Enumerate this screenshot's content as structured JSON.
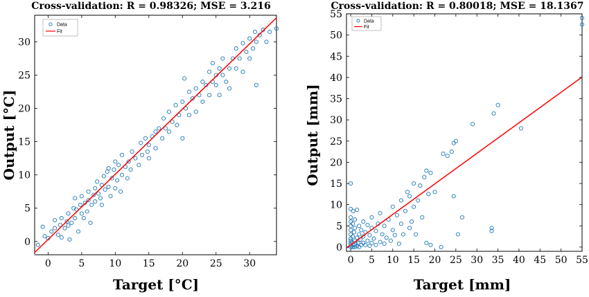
{
  "chart_data": [
    {
      "type": "scatter",
      "title": "Cross-validation: R = 0.98326; MSE = 3.216",
      "xlabel": "Target [°C]",
      "ylabel": "Output [°C]",
      "xlim": [
        -2,
        34
      ],
      "ylim": [
        -2,
        34
      ],
      "xticks": [
        "0",
        "5",
        "10",
        "15",
        "20",
        "25",
        "30"
      ],
      "yticks": [
        "0",
        "5",
        "10",
        "15",
        "20",
        "25",
        "30"
      ],
      "legend": {
        "position": "top-left",
        "entries": [
          "Data",
          "Fit"
        ]
      },
      "colors": {
        "data": "#1f77b4",
        "fit": "#ff0000",
        "diag": "#d9d9d9"
      },
      "fit": {
        "slope": 0.98,
        "intercept": 0.3
      },
      "series": [
        {
          "name": "Data",
          "points": [
            [
              -1.5,
              -0.5
            ],
            [
              -0.8,
              2.2
            ],
            [
              -0.5,
              0.8
            ],
            [
              0,
              0.5
            ],
            [
              0.5,
              1.5
            ],
            [
              1,
              2
            ],
            [
              1,
              3.2
            ],
            [
              1.5,
              1
            ],
            [
              1.8,
              2.5
            ],
            [
              2,
              3.5
            ],
            [
              2,
              0.6
            ],
            [
              2.5,
              2
            ],
            [
              2.8,
              3
            ],
            [
              3,
              2.4
            ],
            [
              3,
              4.2
            ],
            [
              3.2,
              0.3
            ],
            [
              3.5,
              2.8
            ],
            [
              3.8,
              5
            ],
            [
              4,
              3.5
            ],
            [
              4,
              6.5
            ],
            [
              4.2,
              4.8
            ],
            [
              4.5,
              1.5
            ],
            [
              4.8,
              5.5
            ],
            [
              5,
              4.2
            ],
            [
              5,
              6.8
            ],
            [
              5.3,
              3.5
            ],
            [
              5.5,
              5.8
            ],
            [
              5.8,
              4.5
            ],
            [
              6,
              6.2
            ],
            [
              6,
              7.5
            ],
            [
              6.3,
              2.8
            ],
            [
              6.5,
              5.5
            ],
            [
              6.8,
              7
            ],
            [
              7,
              8
            ],
            [
              7,
              6
            ],
            [
              7.3,
              9
            ],
            [
              7.5,
              7.2
            ],
            [
              7.8,
              6.5
            ],
            [
              8,
              8.5
            ],
            [
              8,
              5.5
            ],
            [
              8.3,
              9.8
            ],
            [
              8.5,
              7.8
            ],
            [
              8.8,
              10.5
            ],
            [
              9,
              8.2
            ],
            [
              9,
              11
            ],
            [
              9.3,
              6.8
            ],
            [
              9.5,
              9.5
            ],
            [
              9.8,
              10.8
            ],
            [
              10,
              8
            ],
            [
              10,
              12
            ],
            [
              10.3,
              9.2
            ],
            [
              10.5,
              11.5
            ],
            [
              10.8,
              7.5
            ],
            [
              11,
              10
            ],
            [
              11,
              13
            ],
            [
              11.5,
              11.2
            ],
            [
              11.8,
              9.5
            ],
            [
              12,
              12
            ],
            [
              12.3,
              10.8
            ],
            [
              12.5,
              13.5
            ],
            [
              13,
              12.5
            ],
            [
              13.5,
              11.5
            ],
            [
              13.8,
              14.8
            ],
            [
              14,
              13
            ],
            [
              14.5,
              15.5
            ],
            [
              14.8,
              13.5
            ],
            [
              15,
              14.5
            ],
            [
              15,
              12.5
            ],
            [
              15.5,
              15.8
            ],
            [
              16,
              16.5
            ],
            [
              16,
              14
            ],
            [
              16.5,
              17
            ],
            [
              17,
              15.5
            ],
            [
              17.2,
              18.5
            ],
            [
              17.5,
              17
            ],
            [
              18,
              16.5
            ],
            [
              18,
              19.5
            ],
            [
              18.5,
              18
            ],
            [
              19,
              20.5
            ],
            [
              19.2,
              17.5
            ],
            [
              19.5,
              19
            ],
            [
              20,
              21
            ],
            [
              20,
              15.5
            ],
            [
              20.3,
              24.5
            ],
            [
              20.5,
              20
            ],
            [
              21,
              22.5
            ],
            [
              21,
              19
            ],
            [
              21.5,
              21.5
            ],
            [
              22,
              23
            ],
            [
              22,
              19.5
            ],
            [
              22.5,
              22
            ],
            [
              23,
              24
            ],
            [
              23,
              21
            ],
            [
              23.5,
              23.5
            ],
            [
              24,
              25.5
            ],
            [
              24,
              22
            ],
            [
              24.5,
              24
            ],
            [
              24.5,
              26.8
            ],
            [
              25,
              23.5
            ],
            [
              25,
              25
            ],
            [
              25.5,
              26
            ],
            [
              25.5,
              22
            ],
            [
              26,
              25
            ],
            [
              26,
              27.5
            ],
            [
              26.5,
              24
            ],
            [
              27,
              26
            ],
            [
              27,
              23
            ],
            [
              27.5,
              27.5
            ],
            [
              28,
              26
            ],
            [
              28,
              29
            ],
            [
              28.5,
              27.5
            ],
            [
              29,
              29.8
            ],
            [
              29,
              25.5
            ],
            [
              29.5,
              28.5
            ],
            [
              30,
              30.5
            ],
            [
              30,
              27.5
            ],
            [
              30.5,
              29
            ],
            [
              30.8,
              31.5
            ],
            [
              31,
              30
            ],
            [
              31,
              23.5
            ],
            [
              31.5,
              31
            ],
            [
              32,
              31.8
            ],
            [
              32.5,
              30
            ],
            [
              33,
              31.5
            ],
            [
              34,
              32
            ]
          ]
        }
      ]
    },
    {
      "type": "scatter",
      "title": "Cross-validation: R = 0.80018; MSE = 18.1367",
      "xlabel": "Target [mm]",
      "ylabel": "Output [mm]",
      "xlim": [
        -1,
        55
      ],
      "ylim": [
        -1,
        55
      ],
      "xticks": [
        "0",
        "5",
        "10",
        "15",
        "20",
        "25",
        "30",
        "35",
        "40",
        "45",
        "50",
        "55"
      ],
      "yticks": [
        "0",
        "5",
        "10",
        "15",
        "20",
        "25",
        "30",
        "35",
        "40",
        "45",
        "50",
        "55"
      ],
      "legend": {
        "position": "top-left",
        "entries": [
          "Data",
          "Fit"
        ]
      },
      "colors": {
        "data": "#1f77b4",
        "fit": "#ff0000"
      },
      "fit": {
        "slope": 0.72,
        "intercept": 0.5
      },
      "series": [
        {
          "name": "Data",
          "points": [
            [
              0,
              0
            ],
            [
              0,
              0.5
            ],
            [
              0,
              1
            ],
            [
              0,
              1.5
            ],
            [
              0,
              2
            ],
            [
              0,
              3
            ],
            [
              0,
              4
            ],
            [
              0,
              5
            ],
            [
              0,
              6
            ],
            [
              0,
              7
            ],
            [
              0,
              9
            ],
            [
              0,
              15
            ],
            [
              0.2,
              0.2
            ],
            [
              0.3,
              1.2
            ],
            [
              0.5,
              0
            ],
            [
              0.5,
              2.5
            ],
            [
              0.5,
              5.5
            ],
            [
              0.6,
              8.5
            ],
            [
              0.8,
              0.5
            ],
            [
              0.8,
              3.5
            ],
            [
              1,
              0
            ],
            [
              1,
              1.5
            ],
            [
              1,
              4.5
            ],
            [
              1,
              6.5
            ],
            [
              1.2,
              0.8
            ],
            [
              1.5,
              0.2
            ],
            [
              1.5,
              2.2
            ],
            [
              1.5,
              8.8
            ],
            [
              1.8,
              1
            ],
            [
              2,
              0
            ],
            [
              2,
              3
            ],
            [
              2,
              5
            ],
            [
              2.3,
              1.8
            ],
            [
              2.5,
              0.5
            ],
            [
              2.5,
              4
            ],
            [
              3,
              1
            ],
            [
              3,
              2.5
            ],
            [
              3,
              6
            ],
            [
              3.5,
              0.5
            ],
            [
              3.5,
              3.5
            ],
            [
              4,
              1.5
            ],
            [
              4,
              5.2
            ],
            [
              4.5,
              0.3
            ],
            [
              4.5,
              2.8
            ],
            [
              5,
              1
            ],
            [
              5,
              4.5
            ],
            [
              5,
              7
            ],
            [
              5.5,
              2
            ],
            [
              6,
              0.5
            ],
            [
              6,
              3.8
            ],
            [
              6.5,
              5.5
            ],
            [
              7,
              1.2
            ],
            [
              7,
              8
            ],
            [
              7.5,
              3
            ],
            [
              8,
              0.8
            ],
            [
              8,
              5
            ],
            [
              8.5,
              2.2
            ],
            [
              9,
              6.5
            ],
            [
              9.5,
              1.5
            ],
            [
              10,
              4
            ],
            [
              10,
              9.5
            ],
            [
              10.5,
              2.8
            ],
            [
              11,
              7.5
            ],
            [
              11.5,
              0.8
            ],
            [
              12,
              5.5
            ],
            [
              12,
              11
            ],
            [
              12.5,
              3
            ],
            [
              13,
              8.5
            ],
            [
              13.5,
              13
            ],
            [
              14,
              4.5
            ],
            [
              14,
              12
            ],
            [
              14.5,
              6
            ],
            [
              15,
              9.5
            ],
            [
              15,
              15
            ],
            [
              15.5,
              3
            ],
            [
              16,
              11
            ],
            [
              16.5,
              14.5
            ],
            [
              17,
              7
            ],
            [
              17.5,
              16.5
            ],
            [
              18,
              1
            ],
            [
              18,
              18
            ],
            [
              18.5,
              12.5
            ],
            [
              19,
              0.5
            ],
            [
              19,
              17.5
            ],
            [
              20,
              13
            ],
            [
              21.5,
              0
            ],
            [
              22,
              22
            ],
            [
              23,
              21.5
            ],
            [
              24,
              22.5
            ],
            [
              24.5,
              24.5
            ],
            [
              24.5,
              12
            ],
            [
              25,
              25
            ],
            [
              25.5,
              3
            ],
            [
              26.5,
              7
            ],
            [
              29,
              29
            ],
            [
              33.5,
              4.5
            ],
            [
              33.5,
              3.8
            ],
            [
              34,
              31.5
            ],
            [
              35,
              33.5
            ],
            [
              40.5,
              28
            ],
            [
              55,
              52.5
            ],
            [
              55,
              54
            ]
          ]
        }
      ]
    }
  ]
}
